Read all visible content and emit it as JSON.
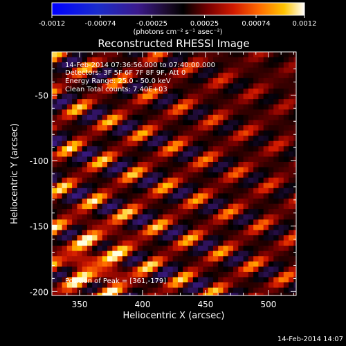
{
  "chart_data": {
    "type": "heatmap",
    "title": "Reconstructed RHESSI Image",
    "xlabel": "Heliocentric X (arcsec)",
    "ylabel": "Heliocentric Y (arcsec)",
    "xlim": [
      328,
      522
    ],
    "ylim": [
      -203,
      -17
    ],
    "xticks": [
      350,
      400,
      450,
      500
    ],
    "xtick_labels": [
      "350",
      "400",
      "450",
      "500"
    ],
    "yticks": [
      -50,
      -100,
      -150,
      -200
    ],
    "ytick_labels": [
      "-50",
      "-100",
      "-150",
      "-200"
    ],
    "grid": false,
    "pixel_size_arcsec": 4,
    "colormap": [
      "#0000cc",
      "#1a2ccc",
      "#3b1a8c",
      "#2a0f4a",
      "#000000",
      "#7a0000",
      "#d21a00",
      "#ff6a00",
      "#ffc400",
      "#ffffe0"
    ],
    "stripe_angle_deg": 33,
    "stripe_period_arcsec": 22,
    "peak_position": [
      361,
      -179
    ],
    "colorbar": {
      "range": [
        -0.0012,
        0.0012
      ],
      "tick_labels": [
        "-0.0012",
        "-0.00074",
        "-0.00025",
        "0.00025",
        "0.00074",
        "0.0012"
      ],
      "units": "(photons cm⁻² s⁻¹ asec⁻²)"
    },
    "annotations": [
      "14-Feb-2014 07:36:56.000 to 07:40:00.000",
      "Detectors: 3F 5F 6F 7F 8F 9F, Att 0",
      "Energy Range: 25.0 - 50.0 keV",
      "Clean    Total counts: 7.40E+03"
    ],
    "peak_label": "Position of Peak = [361,-179]"
  },
  "footer": {
    "timestamp": "14-Feb-2014 14:07"
  }
}
